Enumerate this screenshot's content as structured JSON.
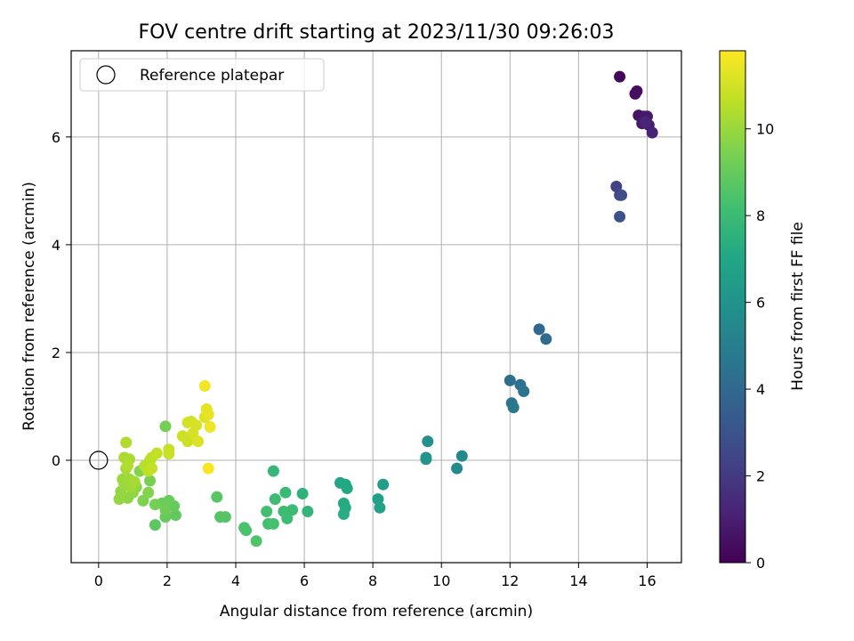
{
  "chart_data": {
    "type": "scatter",
    "title": "FOV centre drift starting at 2023/11/30 09:26:03",
    "xlabel": "Angular distance from reference (arcmin)",
    "ylabel": "Rotation from reference (arcmin)",
    "xlim": [
      -0.8,
      17.0
    ],
    "ylim": [
      -1.9,
      7.6
    ],
    "xticks": [
      0,
      2,
      4,
      6,
      8,
      10,
      12,
      14,
      16
    ],
    "yticks": [
      0,
      2,
      4,
      6
    ],
    "grid": true,
    "legend": {
      "position": "top-left",
      "entries": [
        "Reference platepar"
      ]
    },
    "reference_point": {
      "x": 0,
      "y": 0
    },
    "colorbar": {
      "label": "Hours from first FF file",
      "range": [
        0,
        11.8
      ],
      "ticks": [
        0,
        2,
        4,
        6,
        8,
        10
      ],
      "colormap": "viridis"
    },
    "series": [
      {
        "points": [
          {
            "x": 15.2,
            "y": 7.12,
            "c": 0.2
          },
          {
            "x": 15.65,
            "y": 6.8,
            "c": 0.4
          },
          {
            "x": 15.7,
            "y": 6.85,
            "c": 0.5
          },
          {
            "x": 15.75,
            "y": 6.4,
            "c": 0.6
          },
          {
            "x": 15.9,
            "y": 6.38,
            "c": 0.7
          },
          {
            "x": 16.0,
            "y": 6.38,
            "c": 0.8
          },
          {
            "x": 15.85,
            "y": 6.25,
            "c": 0.9
          },
          {
            "x": 16.05,
            "y": 6.22,
            "c": 1.0
          },
          {
            "x": 16.15,
            "y": 6.08,
            "c": 1.1
          },
          {
            "x": 15.95,
            "y": 6.28,
            "c": 1.2
          },
          {
            "x": 15.1,
            "y": 5.08,
            "c": 2.3
          },
          {
            "x": 15.2,
            "y": 4.92,
            "c": 2.6
          },
          {
            "x": 15.25,
            "y": 4.92,
            "c": 2.8
          },
          {
            "x": 15.2,
            "y": 4.52,
            "c": 2.9
          },
          {
            "x": 12.85,
            "y": 2.43,
            "c": 4.0
          },
          {
            "x": 13.05,
            "y": 2.25,
            "c": 4.1
          },
          {
            "x": 12.0,
            "y": 1.48,
            "c": 4.3
          },
          {
            "x": 12.3,
            "y": 1.4,
            "c": 4.4
          },
          {
            "x": 12.4,
            "y": 1.28,
            "c": 4.5
          },
          {
            "x": 12.05,
            "y": 1.06,
            "c": 4.6
          },
          {
            "x": 12.1,
            "y": 0.98,
            "c": 4.7
          },
          {
            "x": 10.6,
            "y": 0.08,
            "c": 5.5
          },
          {
            "x": 10.45,
            "y": -0.15,
            "c": 5.6
          },
          {
            "x": 9.6,
            "y": 0.35,
            "c": 5.9
          },
          {
            "x": 9.55,
            "y": 0.02,
            "c": 6.0
          },
          {
            "x": 9.55,
            "y": 0.05,
            "c": 6.1
          },
          {
            "x": 8.3,
            "y": -0.45,
            "c": 6.5
          },
          {
            "x": 8.15,
            "y": -0.72,
            "c": 6.6
          },
          {
            "x": 8.2,
            "y": -0.88,
            "c": 6.7
          },
          {
            "x": 7.05,
            "y": -0.42,
            "c": 7.0
          },
          {
            "x": 7.2,
            "y": -0.45,
            "c": 7.1
          },
          {
            "x": 7.25,
            "y": -0.52,
            "c": 7.1
          },
          {
            "x": 7.15,
            "y": -0.8,
            "c": 7.2
          },
          {
            "x": 7.2,
            "y": -0.88,
            "c": 7.2
          },
          {
            "x": 7.15,
            "y": -1.0,
            "c": 7.3
          },
          {
            "x": 5.95,
            "y": -0.62,
            "c": 7.6
          },
          {
            "x": 6.1,
            "y": -0.95,
            "c": 7.7
          },
          {
            "x": 5.1,
            "y": -0.2,
            "c": 7.8
          },
          {
            "x": 5.45,
            "y": -0.6,
            "c": 7.9
          },
          {
            "x": 5.65,
            "y": -0.92,
            "c": 8.0
          },
          {
            "x": 5.4,
            "y": -0.95,
            "c": 8.0
          },
          {
            "x": 5.5,
            "y": -1.08,
            "c": 8.1
          },
          {
            "x": 5.15,
            "y": -0.72,
            "c": 8.1
          },
          {
            "x": 4.9,
            "y": -0.95,
            "c": 8.2
          },
          {
            "x": 4.95,
            "y": -1.18,
            "c": 8.2
          },
          {
            "x": 5.1,
            "y": -1.18,
            "c": 8.3
          },
          {
            "x": 4.25,
            "y": -1.25,
            "c": 8.4
          },
          {
            "x": 4.3,
            "y": -1.3,
            "c": 8.4
          },
          {
            "x": 4.6,
            "y": -1.5,
            "c": 8.5
          },
          {
            "x": 3.55,
            "y": -1.05,
            "c": 8.6
          },
          {
            "x": 3.7,
            "y": -1.05,
            "c": 8.6
          },
          {
            "x": 3.45,
            "y": -0.68,
            "c": 8.7
          },
          {
            "x": 1.65,
            "y": -1.2,
            "c": 8.8
          },
          {
            "x": 2.25,
            "y": -1.02,
            "c": 8.9
          },
          {
            "x": 1.95,
            "y": -1.05,
            "c": 9.0
          },
          {
            "x": 2.2,
            "y": -0.85,
            "c": 9.0
          },
          {
            "x": 2.05,
            "y": -0.75,
            "c": 9.1
          },
          {
            "x": 1.85,
            "y": -0.8,
            "c": 9.1
          },
          {
            "x": 1.95,
            "y": -0.92,
            "c": 9.2
          },
          {
            "x": 1.95,
            "y": 0.63,
            "c": 9.3
          },
          {
            "x": 1.65,
            "y": -0.82,
            "c": 9.3
          },
          {
            "x": 1.5,
            "y": -0.38,
            "c": 9.4
          },
          {
            "x": 1.3,
            "y": -0.75,
            "c": 9.5
          },
          {
            "x": 1.45,
            "y": -0.6,
            "c": 9.6
          },
          {
            "x": 1.2,
            "y": -0.2,
            "c": 9.6
          },
          {
            "x": 1.1,
            "y": -0.5,
            "c": 9.7
          },
          {
            "x": 1.0,
            "y": -0.6,
            "c": 9.8
          },
          {
            "x": 0.85,
            "y": -0.7,
            "c": 9.8
          },
          {
            "x": 0.6,
            "y": -0.72,
            "c": 9.9
          },
          {
            "x": 0.65,
            "y": -0.58,
            "c": 9.9
          },
          {
            "x": 0.75,
            "y": -0.45,
            "c": 10.0
          },
          {
            "x": 0.7,
            "y": -0.35,
            "c": 10.0
          },
          {
            "x": 0.9,
            "y": -0.35,
            "c": 10.1
          },
          {
            "x": 0.95,
            "y": -0.5,
            "c": 10.1
          },
          {
            "x": 1.05,
            "y": -0.4,
            "c": 10.2
          },
          {
            "x": 0.8,
            "y": -0.15,
            "c": 10.2
          },
          {
            "x": 0.75,
            "y": 0.05,
            "c": 10.3
          },
          {
            "x": 0.9,
            "y": 0.02,
            "c": 10.3
          },
          {
            "x": 0.85,
            "y": -0.1,
            "c": 10.4
          },
          {
            "x": 0.8,
            "y": 0.33,
            "c": 10.4
          },
          {
            "x": 1.35,
            "y": -0.1,
            "c": 10.5
          },
          {
            "x": 1.5,
            "y": 0.0,
            "c": 10.5
          },
          {
            "x": 1.45,
            "y": -0.2,
            "c": 10.6
          },
          {
            "x": 1.55,
            "y": 0.05,
            "c": 10.6
          },
          {
            "x": 1.55,
            "y": -0.15,
            "c": 10.7
          },
          {
            "x": 1.7,
            "y": 0.13,
            "c": 10.7
          },
          {
            "x": 2.05,
            "y": 0.12,
            "c": 10.8
          },
          {
            "x": 2.05,
            "y": 0.2,
            "c": 10.8
          },
          {
            "x": 2.45,
            "y": 0.45,
            "c": 10.9
          },
          {
            "x": 2.6,
            "y": 0.35,
            "c": 10.9
          },
          {
            "x": 2.6,
            "y": 0.7,
            "c": 11.0
          },
          {
            "x": 2.7,
            "y": 0.72,
            "c": 11.0
          },
          {
            "x": 2.75,
            "y": 0.5,
            "c": 11.1
          },
          {
            "x": 2.85,
            "y": 0.65,
            "c": 11.1
          },
          {
            "x": 2.9,
            "y": 0.35,
            "c": 11.2
          },
          {
            "x": 3.1,
            "y": 0.8,
            "c": 11.2
          },
          {
            "x": 3.15,
            "y": 0.95,
            "c": 11.3
          },
          {
            "x": 3.2,
            "y": 0.85,
            "c": 11.4
          },
          {
            "x": 3.25,
            "y": 0.62,
            "c": 11.5
          },
          {
            "x": 3.1,
            "y": 1.38,
            "c": 11.6
          },
          {
            "x": 3.2,
            "y": -0.15,
            "c": 11.7
          }
        ]
      }
    ]
  }
}
